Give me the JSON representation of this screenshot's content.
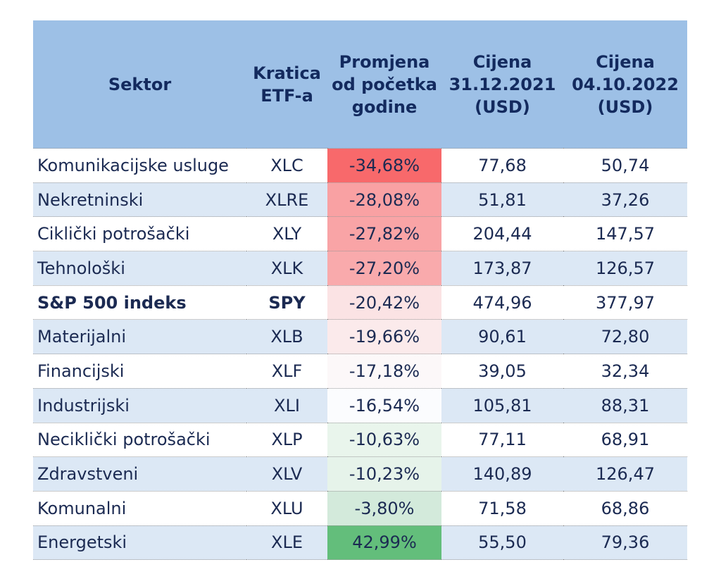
{
  "headers": {
    "sector": "Sektor",
    "ticker": [
      "Kratica",
      "ETF-a"
    ],
    "change": [
      "Promjena",
      "od početka",
      "godine"
    ],
    "price_start": [
      "Cijena",
      "31.12.2021",
      "(USD)"
    ],
    "price_end": [
      "Cijena",
      "04.10.2022",
      "(USD)"
    ]
  },
  "rows": [
    {
      "sector": "Komunikacijske usluge",
      "ticker": "XLC",
      "change": "-34,68%",
      "price_start": "77,68",
      "price_end": "50,74",
      "color": "#f8696b"
    },
    {
      "sector": "Nekretninski",
      "ticker": "XLRE",
      "change": "-28,08%",
      "price_start": "51,81",
      "price_end": "37,26",
      "color": "#f9a1a3"
    },
    {
      "sector": "Ciklički potrošački",
      "ticker": "XLY",
      "change": "-27,82%",
      "price_start": "204,44",
      "price_end": "147,57",
      "color": "#f9a4a6"
    },
    {
      "sector": "Tehnološki",
      "ticker": "XLK",
      "change": "-27,20%",
      "price_start": "173,87",
      "price_end": "126,57",
      "color": "#f9aaac"
    },
    {
      "sector": "S&P 500 indeks",
      "ticker": "SPY",
      "change": "-20,42%",
      "price_start": "474,96",
      "price_end": "377,97",
      "color": "#fbe3e4",
      "bold": true
    },
    {
      "sector": "Materijalni",
      "ticker": "XLB",
      "change": "-19,66%",
      "price_start": "90,61",
      "price_end": "72,80",
      "color": "#fbeaeb"
    },
    {
      "sector": "Financijski",
      "ticker": "XLF",
      "change": "-17,18%",
      "price_start": "39,05",
      "price_end": "32,34",
      "color": "#fcf8f9"
    },
    {
      "sector": "Industrijski",
      "ticker": "XLI",
      "change": "-16,54%",
      "price_start": "105,81",
      "price_end": "88,31",
      "color": "#fbfcfe"
    },
    {
      "sector": "Neciklički potrošački",
      "ticker": "XLP",
      "change": "-10,63%",
      "price_start": "77,11",
      "price_end": "68,91",
      "color": "#e9f5ec"
    },
    {
      "sector": "Zdravstveni",
      "ticker": "XLV",
      "change": "-10,23%",
      "price_start": "140,89",
      "price_end": "126,47",
      "color": "#e6f3ea"
    },
    {
      "sector": "Komunalni",
      "ticker": "XLU",
      "change": "-3,80%",
      "price_start": "71,58",
      "price_end": "68,86",
      "color": "#d3eadb"
    },
    {
      "sector": "Energetski",
      "ticker": "XLE",
      "change": "42,99%",
      "price_start": "55,50",
      "price_end": "79,36",
      "color": "#63be7b"
    }
  ]
}
